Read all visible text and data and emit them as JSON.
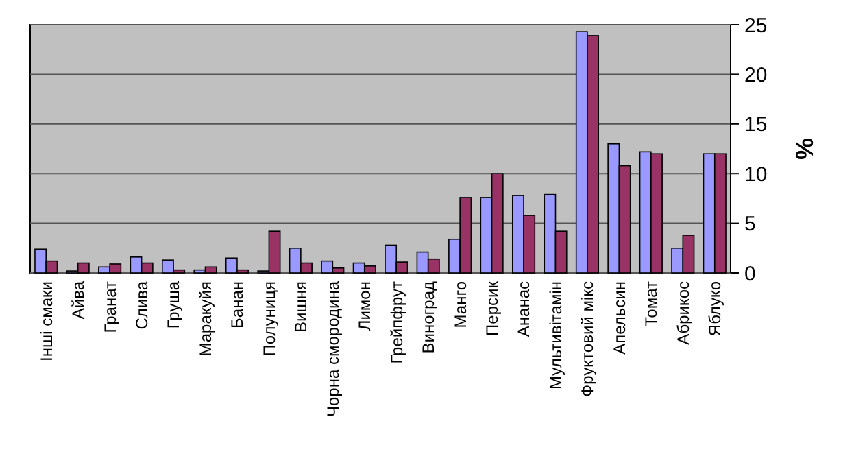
{
  "chart_data": {
    "type": "bar",
    "ylabel": "%",
    "categories": [
      "Інші смаки",
      "Айва",
      "Гранат",
      "Слива",
      "Груша",
      "Маракуйя",
      "Банан",
      "Полуниця",
      "Вишня",
      "Чорна смородина",
      "Лимон",
      "Грейпфрут",
      "Виноград",
      "Манго",
      "Персик",
      "Ананас",
      "Мультивітамін",
      "Фруктовий мікс",
      "Апельсин",
      "Томат",
      "Абрикос",
      "Яблуко"
    ],
    "series": [
      {
        "color": "#9999ff",
        "values": [
          2.4,
          0.2,
          0.6,
          1.6,
          1.3,
          0.3,
          1.5,
          0.2,
          2.5,
          1.2,
          1,
          2.8,
          2.1,
          3.4,
          7.6,
          7.8,
          7.9,
          24.3,
          13,
          12.2,
          2.5,
          12
        ]
      },
      {
        "color": "#993366",
        "values": [
          1.2,
          1,
          0.9,
          1,
          0.3,
          0.6,
          0.3,
          4.2,
          1,
          0.5,
          0.7,
          1.1,
          1.4,
          7.6,
          10,
          5.8,
          4.2,
          23.9,
          10.8,
          12,
          3.8,
          12
        ]
      }
    ],
    "ylim": [
      0,
      25
    ],
    "yticks": [
      0,
      5,
      10,
      15,
      20,
      25
    ],
    "grid": "y"
  }
}
